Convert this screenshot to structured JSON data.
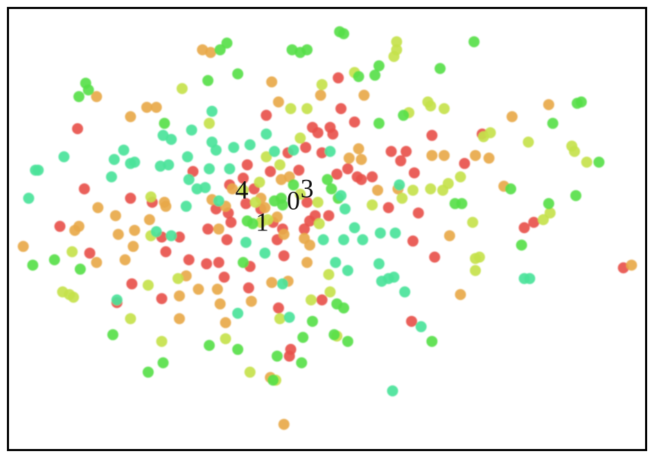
{
  "chart_data": {
    "type": "scatter",
    "title": "",
    "xlabel": "",
    "ylabel": "",
    "xlim": [
      -47,
      47.1
    ],
    "ylim": [
      -33.2,
      33
    ],
    "grid": false,
    "legend": "none",
    "series": [
      {
        "color": "#e8514c",
        "points": [
          [
            -36.8,
            15
          ],
          [
            -35.8,
            6
          ],
          [
            -39.4,
            0.4
          ],
          [
            -35,
            -3.6
          ],
          [
            -29,
            4.6
          ],
          [
            -25.8,
            4
          ],
          [
            -24.4,
            -1.2
          ],
          [
            -23.8,
            -3.4
          ],
          [
            -21.8,
            -1.2
          ],
          [
            -20.4,
            -4.6
          ],
          [
            -17.8,
            -5.2
          ],
          [
            -16,
            -5
          ],
          [
            -14.8,
            -1.6
          ],
          [
            -17.6,
            0
          ],
          [
            -16.4,
            3
          ],
          [
            -14.6,
            2.4
          ],
          [
            -14.2,
            1
          ],
          [
            -12,
            3.8
          ],
          [
            -12.4,
            7.6
          ],
          [
            -11.8,
            9.6
          ],
          [
            -14.4,
            6.6
          ],
          [
            -19.8,
            8.6
          ],
          [
            -9,
            17
          ],
          [
            -8.4,
            8.6
          ],
          [
            -5.8,
            11.4
          ],
          [
            -3.2,
            12.2
          ],
          [
            -2.2,
            15.2
          ],
          [
            -1.4,
            14.4
          ],
          [
            0.4,
            15.2
          ],
          [
            0.8,
            14.2
          ],
          [
            2,
            18
          ],
          [
            -0.8,
            11.4
          ],
          [
            -4.2,
            8.8
          ],
          [
            3,
            9
          ],
          [
            4.4,
            7.8
          ],
          [
            5,
            7.4
          ],
          [
            6.6,
            7.8
          ],
          [
            4,
            16
          ],
          [
            9.4,
            11.6
          ],
          [
            11.6,
            11.6
          ],
          [
            10.8,
            10.2
          ],
          [
            12.8,
            8.4
          ],
          [
            9,
            3.2
          ],
          [
            13.4,
            2.4
          ],
          [
            12.6,
            -1.8
          ],
          [
            15.4,
            14
          ],
          [
            20.2,
            9.8
          ],
          [
            22.8,
            14.2
          ],
          [
            30.4,
            1
          ],
          [
            29,
            0.2
          ],
          [
            15.8,
            -4.2
          ],
          [
            43.6,
            -5.8
          ],
          [
            -28.8,
            -8.2
          ],
          [
            -24.4,
            -10.4
          ],
          [
            -31,
            -11
          ],
          [
            -15.2,
            -7.2
          ],
          [
            -11.6,
            -8.8
          ],
          [
            -7.2,
            -11.8
          ],
          [
            -0.8,
            -10.6
          ],
          [
            -5.4,
            -18
          ],
          [
            -5.6,
            -19
          ],
          [
            -6.4,
            -4
          ],
          [
            -7.4,
            -1.6
          ],
          [
            -6.6,
            0
          ],
          [
            -3.4,
            0
          ],
          [
            -2.6,
            1.2
          ],
          [
            -1.8,
            2
          ],
          [
            0.2,
            2
          ],
          [
            1.4,
            8.2
          ],
          [
            -11.4,
            -5.6
          ],
          [
            -10.8,
            6
          ],
          [
            -8,
            1
          ],
          [
            -9.8,
            3
          ],
          [
            12.4,
            -13.8
          ],
          [
            1.6,
            22.6
          ],
          [
            -3,
            4
          ]
        ]
      },
      {
        "color": "#e8a94a",
        "points": [
          [
            -44.8,
            -2.6
          ],
          [
            -34,
            19.8
          ],
          [
            -29,
            16.8
          ],
          [
            -26.6,
            18.2
          ],
          [
            -25.2,
            18.2
          ],
          [
            -18.4,
            26.8
          ],
          [
            -17.2,
            26.4
          ],
          [
            -8.2,
            22
          ],
          [
            -7.2,
            19
          ],
          [
            -1,
            20
          ],
          [
            4.6,
            12
          ],
          [
            5.4,
            20
          ],
          [
            3.2,
            10.6
          ],
          [
            5,
            10.4
          ],
          [
            7.4,
            5.8
          ],
          [
            10.4,
            6
          ],
          [
            15.4,
            11
          ],
          [
            17.2,
            11
          ],
          [
            21.8,
            11
          ],
          [
            23.8,
            10.6
          ],
          [
            27.2,
            16.8
          ],
          [
            32.6,
            18.6
          ],
          [
            26,
            6.4
          ],
          [
            18,
            -1
          ],
          [
            44.8,
            -5.4
          ],
          [
            19.6,
            -9.8
          ],
          [
            -33.8,
            3.2
          ],
          [
            -36.6,
            0.4
          ],
          [
            -37.2,
            -0.2
          ],
          [
            -31.2,
            2
          ],
          [
            -30.8,
            -0.8
          ],
          [
            -28.4,
            -0.2
          ],
          [
            -28.6,
            -2.6
          ],
          [
            -29.8,
            -4.6
          ],
          [
            -34,
            -5
          ],
          [
            -26.2,
            1.4
          ],
          [
            -24,
            4
          ],
          [
            -23.8,
            3.4
          ],
          [
            -20.8,
            -7
          ],
          [
            -21.8,
            -10
          ],
          [
            -21.8,
            -13.4
          ],
          [
            -19,
            -9
          ],
          [
            -16.2,
            -9
          ],
          [
            -15.8,
            -11.2
          ],
          [
            -15,
            -14
          ],
          [
            -11.2,
            -10.8
          ],
          [
            -8.4,
            -22.2
          ],
          [
            -6.4,
            -29.2
          ],
          [
            -8.2,
            -8
          ],
          [
            -5.8,
            -7.8
          ],
          [
            -3,
            -5
          ],
          [
            -3.4,
            -1.4
          ],
          [
            -2.6,
            -2.4
          ],
          [
            -6.8,
            7.4
          ],
          [
            -5.6,
            7.8
          ],
          [
            -14,
            6
          ],
          [
            -9.8,
            4.6
          ],
          [
            -9.2,
            3.2
          ],
          [
            -7.4,
            1.8
          ],
          [
            -6.4,
            -0.8
          ],
          [
            -17,
            4.4
          ],
          [
            -15,
            3.4
          ],
          [
            -16,
            0
          ]
        ]
      },
      {
        "color": "#c6e24c",
        "points": [
          [
            -21.4,
            21
          ],
          [
            -17.4,
            15.8
          ],
          [
            -4,
            13.6
          ],
          [
            -5.4,
            18
          ],
          [
            -3,
            18
          ],
          [
            -0.8,
            21.6
          ],
          [
            4,
            23.4
          ],
          [
            10.2,
            28
          ],
          [
            9.8,
            25.8
          ],
          [
            10.2,
            26.8
          ],
          [
            14.8,
            19
          ],
          [
            15.2,
            18.4
          ],
          [
            17.2,
            18
          ],
          [
            24,
            14.4
          ],
          [
            23,
            13.8
          ],
          [
            29.6,
            13
          ],
          [
            36,
            12.4
          ],
          [
            36.4,
            11.6
          ],
          [
            38.2,
            10
          ],
          [
            12,
            17.4
          ],
          [
            19.6,
            7.8
          ],
          [
            17.8,
            6.8
          ],
          [
            17,
            5.8
          ],
          [
            15.2,
            6
          ],
          [
            12.6,
            5.8
          ],
          [
            11,
            4.6
          ],
          [
            6.6,
            3.6
          ],
          [
            21.4,
            1
          ],
          [
            21.8,
            -4.4
          ],
          [
            22.4,
            -4.2
          ],
          [
            31.8,
            1.4
          ],
          [
            32.8,
            2.4
          ],
          [
            21.8,
            -6.2
          ],
          [
            -39,
            -9.4
          ],
          [
            -38,
            -9.8
          ],
          [
            -37.4,
            -10.2
          ],
          [
            -26.4,
            -8.4
          ],
          [
            -22,
            -7.4
          ],
          [
            -29,
            -13.4
          ],
          [
            -24.4,
            -16.8
          ],
          [
            -15,
            -16.4
          ],
          [
            -11.4,
            -21.4
          ],
          [
            -7.6,
            -22.6
          ],
          [
            -7,
            -13.4
          ],
          [
            -2.4,
            -10.6
          ],
          [
            0.2,
            -6.8
          ],
          [
            0.4,
            -9.4
          ],
          [
            1.4,
            -16
          ],
          [
            -26,
            4.8
          ],
          [
            -26,
            -1
          ],
          [
            -37.6,
            -3.4
          ],
          [
            -12.4,
            5.8
          ],
          [
            -10.6,
            4
          ],
          [
            -10,
            7
          ],
          [
            -8.8,
            1.4
          ],
          [
            -4,
            5.2
          ],
          [
            -1.4,
            4
          ],
          [
            -1.2,
            0.8
          ],
          [
            -9.8,
            1
          ],
          [
            -7,
            9.6
          ],
          [
            -9,
            10.8
          ]
        ]
      },
      {
        "color": "#58e04a",
        "points": [
          [
            -14.8,
            27.8
          ],
          [
            -15.8,
            26.8
          ],
          [
            -17.6,
            22.2
          ],
          [
            -13.2,
            23.2
          ],
          [
            -5.2,
            26.8
          ],
          [
            -4,
            26.4
          ],
          [
            -3,
            26.8
          ],
          [
            1.8,
            29.5
          ],
          [
            2.4,
            29.2
          ],
          [
            7.6,
            24.4
          ],
          [
            7,
            23
          ],
          [
            4.6,
            22.8
          ],
          [
            16.6,
            24
          ],
          [
            21.6,
            28
          ],
          [
            -35.6,
            21.8
          ],
          [
            -36.6,
            19.8
          ],
          [
            -35.2,
            20.8
          ],
          [
            -24,
            15.8
          ],
          [
            11.2,
            17
          ],
          [
            36.8,
            18.8
          ],
          [
            37.4,
            19
          ],
          [
            33.2,
            15.8
          ],
          [
            40,
            10
          ],
          [
            36.6,
            5
          ],
          [
            27,
            6
          ],
          [
            18.8,
            3.8
          ],
          [
            19.8,
            3.8
          ],
          [
            32.6,
            3.8
          ],
          [
            28.6,
            -2.4
          ],
          [
            -43.4,
            -5.4
          ],
          [
            -36.4,
            -6
          ],
          [
            -40.2,
            -4.6
          ],
          [
            -31.6,
            -15.8
          ],
          [
            -26.4,
            -21.4
          ],
          [
            -24.2,
            -20
          ],
          [
            -17.4,
            -17.4
          ],
          [
            -13.2,
            -18
          ],
          [
            -3.6,
            -16.2
          ],
          [
            -3.8,
            -20
          ],
          [
            1,
            -15.8
          ],
          [
            3,
            -16.8
          ],
          [
            -8,
            -22.6
          ],
          [
            1.4,
            -11.2
          ],
          [
            2.4,
            -11.8
          ],
          [
            -2.2,
            -13.8
          ],
          [
            -7.4,
            -19
          ],
          [
            15.4,
            -16.8
          ],
          [
            0,
            7.4
          ],
          [
            0.6,
            6
          ],
          [
            1.6,
            4.6
          ],
          [
            -7.8,
            4.2
          ],
          [
            -5,
            6.6
          ],
          [
            -11.8,
            1.2
          ],
          [
            -11,
            0.8
          ],
          [
            -6.8,
            4.6
          ],
          [
            -6.6,
            3.6
          ],
          [
            7.6,
            15.8
          ],
          [
            -12.4,
            -5
          ]
        ]
      },
      {
        "color": "#4be39a",
        "points": [
          [
            -43,
            8.8
          ],
          [
            -42.6,
            8.8
          ],
          [
            -38.8,
            10.8
          ],
          [
            -44,
            4.6
          ],
          [
            -31.4,
            10.4
          ],
          [
            -30,
            11.8
          ],
          [
            -28.4,
            10
          ],
          [
            -29,
            9.8
          ],
          [
            -31.8,
            7.8
          ],
          [
            -24.2,
            14
          ],
          [
            -23,
            13.4
          ],
          [
            -24.6,
            9.4
          ],
          [
            -23.4,
            9.6
          ],
          [
            -20.6,
            10.8
          ],
          [
            -20,
            14.8
          ],
          [
            -17,
            17.6
          ],
          [
            -17,
            13
          ],
          [
            -16.4,
            11.8
          ],
          [
            -13.8,
            12.2
          ],
          [
            -11.4,
            12.6
          ],
          [
            -9,
            14.2
          ],
          [
            -20.4,
            7.4
          ],
          [
            -19.2,
            6
          ],
          [
            -17.4,
            9
          ],
          [
            -14.4,
            9
          ],
          [
            -18,
            6.2
          ],
          [
            -16,
            4.2
          ],
          [
            -20.8,
            3.4
          ],
          [
            -23,
            -1
          ],
          [
            -25.2,
            -0.4
          ],
          [
            -12,
            -2
          ],
          [
            -9.2,
            -3.6
          ],
          [
            -6.6,
            -8.2
          ],
          [
            -5.6,
            -13.2
          ],
          [
            -13.2,
            -12.6
          ],
          [
            -0.6,
            -1.6
          ],
          [
            1.2,
            -5
          ],
          [
            2,
            5
          ],
          [
            2.6,
            3
          ],
          [
            4,
            0.2
          ],
          [
            7.8,
            -0.6
          ],
          [
            10,
            -0.6
          ],
          [
            7.6,
            -5.2
          ],
          [
            8,
            -7.8
          ],
          [
            9,
            -7.4
          ],
          [
            9.8,
            -7.2
          ],
          [
            11.4,
            -9.4
          ],
          [
            5.2,
            -1.6
          ],
          [
            3,
            -6.2
          ],
          [
            10.6,
            6.6
          ],
          [
            29,
            -7.4
          ],
          [
            29.8,
            -7.4
          ],
          [
            9.6,
            -24.2
          ],
          [
            13.8,
            -14.6
          ],
          [
            -31,
            -10.6
          ],
          [
            2.4,
            -1.6
          ],
          [
            0.4,
            11.6
          ],
          [
            -5,
            11.8
          ],
          [
            -7.8,
            11.6
          ]
        ]
      }
    ],
    "annotations": [
      {
        "text": "4",
        "x": -12.6,
        "y": 5.8
      },
      {
        "text": "0",
        "x": -5,
        "y": 4.2
      },
      {
        "text": "3",
        "x": -3,
        "y": 6
      },
      {
        "text": "1",
        "x": -9.6,
        "y": 1
      }
    ]
  }
}
